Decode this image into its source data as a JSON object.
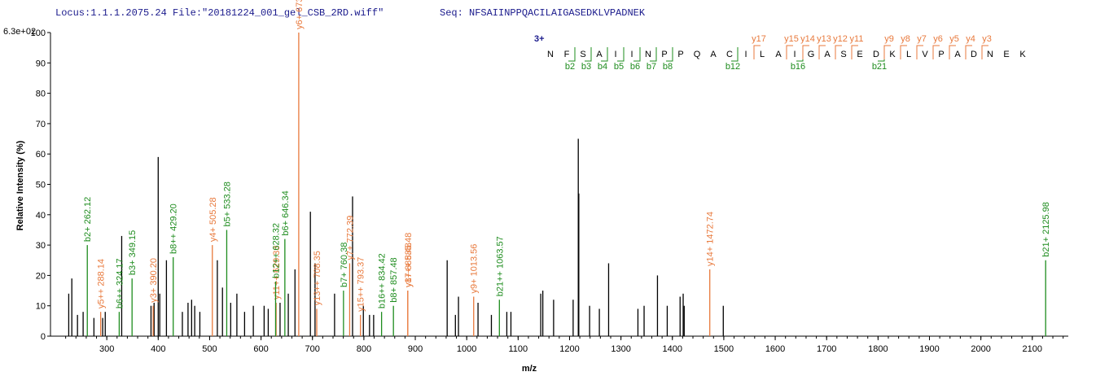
{
  "chart_data": {
    "type": "spectrum",
    "title": "Locus:1.1.1.2075.24 File:\"20181224_001_gel_CSB_2RD.wiff\"",
    "subtitle": "Seq: NFSAIINPPQACILAIGASEDKLVPADNEK",
    "y_scale_label": "6.3e+02",
    "x_label": "m/z",
    "y_label": "Relative   Intensity (%)",
    "xlim": [
      200,
      2170
    ],
    "xticks": [
      300,
      400,
      500,
      600,
      700,
      800,
      900,
      1000,
      1100,
      1200,
      1300,
      1400,
      1500,
      1600,
      1700,
      1800,
      1900,
      2000,
      2100
    ],
    "ylim": [
      0,
      100
    ],
    "yticks": [
      0,
      10,
      20,
      30,
      40,
      50,
      60,
      70,
      80,
      90,
      100
    ],
    "series": [
      {
        "color": "#000000",
        "x": [
          226,
          232,
          243,
          254,
          275,
          292,
          297,
          329,
          386,
          392,
          400,
          403,
          416,
          447,
          458,
          465,
          471,
          481,
          515,
          525,
          541,
          553,
          568,
          585,
          606,
          614,
          637,
          653,
          666,
          696,
          705,
          743,
          778,
          799,
          811,
          819,
          962,
          978,
          984,
          1022,
          1048,
          1078,
          1086,
          1144,
          1148,
          1169,
          1207,
          1217,
          1218,
          1239,
          1258,
          1276,
          1333,
          1345,
          1371,
          1390,
          1415,
          1421,
          1423,
          1499
        ],
        "values": [
          14,
          19,
          7,
          8,
          6,
          6,
          8,
          33,
          10,
          11,
          59,
          14,
          25,
          8,
          11,
          12,
          10,
          8,
          25,
          16,
          11,
          14,
          8,
          10,
          10,
          9,
          11,
          14,
          22,
          41,
          24,
          14,
          46,
          10,
          7,
          7,
          25,
          7,
          13,
          11,
          7,
          8,
          8,
          14,
          15,
          12,
          12,
          65,
          47,
          10,
          9,
          24,
          9,
          10,
          20,
          10,
          13,
          14,
          10,
          10
        ]
      },
      {
        "color": "#e8793c",
        "x": [
          288.14,
          390.2,
          505.28,
          629.33,
          673.33,
          708.35,
          772.39,
          793.37,
          885.48,
          885.48,
          1013.56,
          1472.74
        ],
        "values": [
          8,
          10,
          30,
          11,
          100,
          9,
          24,
          7,
          15,
          15,
          13,
          22
        ],
        "labels": [
          "y5++ 288.14",
          "y3+ 390.20",
          "y4+ 505.28",
          "y11++ 629.33",
          "y6+ 673.33",
          "y13++ 708.35",
          "y7+ 772.39",
          "y15++ 793.37",
          "y17++ 885.48",
          "y8+ 885.48",
          "y9+ 1013.56",
          "y14+ 1472.74"
        ]
      },
      {
        "color": "#1e8c1e",
        "x": [
          262.12,
          324.17,
          349.15,
          429.2,
          533.28,
          628.32,
          646.34,
          760.38,
          834.42,
          857.48,
          1063.57,
          2125.98
        ],
        "values": [
          30,
          8,
          19,
          26,
          35,
          18,
          32,
          15,
          8,
          10,
          12,
          25
        ],
        "labels": [
          "b2+ 262.12",
          "b6++ 324.17",
          "b3+ 349.15",
          "b8++ 429.20",
          "b5+ 533.28",
          "b12++ 628.32",
          "b6+ 646.34",
          "b7+ 760.38",
          "b16++ 834.42",
          "b8+ 857.48",
          "b21++ 1063.57",
          "b21+ 2125.98"
        ]
      }
    ],
    "sequence_map": {
      "charge": "3+",
      "residues": [
        "N",
        "F",
        "S",
        "A",
        "I",
        "I",
        "N",
        "P",
        "P",
        "Q",
        "A",
        "C",
        "I",
        "L",
        "A",
        "I",
        "G",
        "A",
        "S",
        "E",
        "D",
        "K",
        "L",
        "V",
        "P",
        "A",
        "D",
        "N",
        "E",
        "K"
      ],
      "b_ions": [
        "b2",
        "b3",
        "b4",
        "b5",
        "b6",
        "b7",
        "b8",
        "b12",
        "b16",
        "b21"
      ],
      "y_ions": [
        "y17",
        "y15",
        "y14",
        "y13",
        "y12",
        "y11",
        "y9",
        "y8",
        "y7",
        "y6",
        "y5",
        "y4",
        "y3"
      ]
    }
  }
}
